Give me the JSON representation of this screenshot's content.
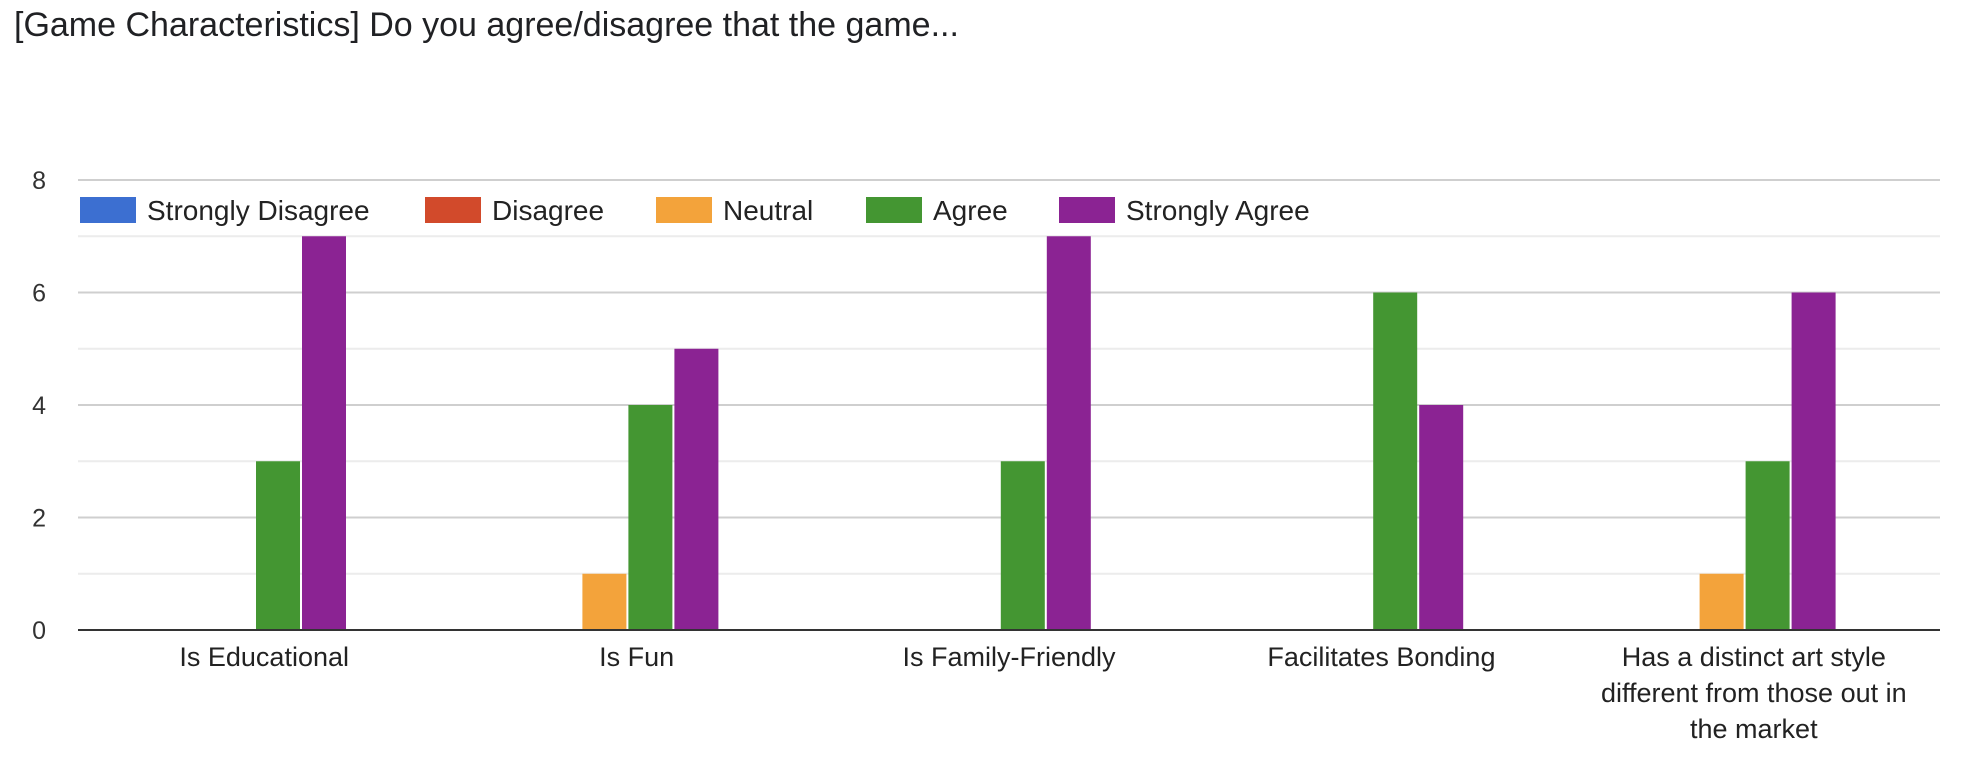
{
  "chart_data": {
    "type": "bar",
    "title": "[Game Characteristics] Do you agree/disagree that the game...",
    "categories": [
      [
        "Is Educational"
      ],
      [
        "Is Fun"
      ],
      [
        "Is Family-Friendly"
      ],
      [
        "Facilitates Bonding"
      ],
      [
        "Has a distinct art style",
        "different from those out in",
        "the market"
      ]
    ],
    "series": [
      {
        "name": "Strongly Disagree",
        "color": "#3c6fd1",
        "values": [
          0,
          0,
          0,
          0,
          0
        ]
      },
      {
        "name": "Disagree",
        "color": "#d24a2b",
        "values": [
          0,
          0,
          0,
          0,
          0
        ]
      },
      {
        "name": "Neutral",
        "color": "#f3a33b",
        "values": [
          0,
          1,
          0,
          0,
          1
        ]
      },
      {
        "name": "Agree",
        "color": "#449632",
        "values": [
          3,
          4,
          3,
          6,
          3
        ]
      },
      {
        "name": "Strongly Agree",
        "color": "#8b2393",
        "values": [
          7,
          5,
          7,
          4,
          6
        ]
      }
    ],
    "yticks": [
      0,
      2,
      4,
      6,
      8
    ],
    "ylim": [
      0,
      8
    ],
    "grid": true,
    "legend_position": "top-left"
  }
}
